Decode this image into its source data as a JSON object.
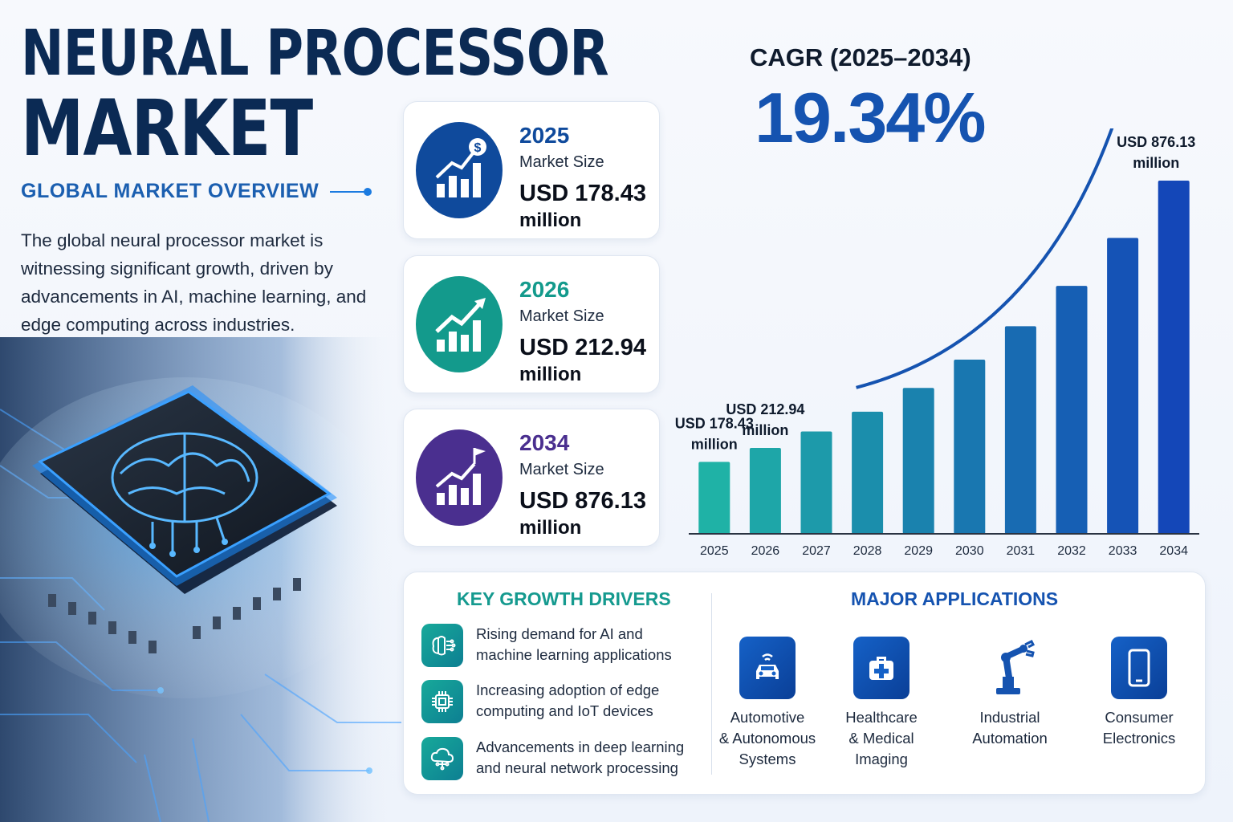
{
  "header": {
    "title_line1": "NEURAL PROCESSOR",
    "title_line2": "MARKET",
    "subtitle": "GLOBAL MARKET OVERVIEW",
    "intro": "The global neural processor market is witnessing significant growth, driven by advancements in AI, machine learning, and edge computing across industries."
  },
  "cards": [
    {
      "year": "2025",
      "label": "Market Size",
      "value": "USD 178.43",
      "unit": "million",
      "color": "#0f4a9c",
      "icon": "bar-growth-dollar-icon"
    },
    {
      "year": "2026",
      "label": "Market Size",
      "value": "USD 212.94",
      "unit": "million",
      "color": "#139a8c",
      "icon": "bar-growth-arrow-icon"
    },
    {
      "year": "2034",
      "label": "Market Size",
      "value": "USD 876.13",
      "unit": "million",
      "color": "#4a2f8f",
      "icon": "bar-growth-flag-icon"
    }
  ],
  "cagr": {
    "label": "CAGR (2025–2034)",
    "value": "19.34%"
  },
  "chart_data": {
    "type": "bar",
    "categories": [
      "2025",
      "2026",
      "2027",
      "2028",
      "2029",
      "2030",
      "2031",
      "2032",
      "2033",
      "2034"
    ],
    "values": [
      178.43,
      212.94,
      254,
      303,
      362,
      432,
      515,
      615,
      734,
      876.13
    ],
    "annotations": [
      {
        "category": "2025",
        "line1": "USD 178.43",
        "line2": "million"
      },
      {
        "category": "2026",
        "line1": "USD 212.94",
        "line2": "million"
      },
      {
        "category": "2034",
        "line1": "USD 876.13",
        "line2": "million"
      }
    ],
    "title": "",
    "xlabel": "",
    "ylabel": "",
    "grid": false,
    "colors": {
      "start": "#1fb2a6",
      "end": "#1447b8"
    }
  },
  "drivers": {
    "heading": "KEY GROWTH DRIVERS",
    "items": [
      {
        "text": "Rising demand for AI and machine learning applications",
        "icon": "brain-circuit-icon"
      },
      {
        "text": "Increasing adoption of edge computing and IoT devices",
        "icon": "chip-icon"
      },
      {
        "text": "Advancements in deep learning and neural network processing",
        "icon": "cloud-network-icon"
      }
    ]
  },
  "applications": {
    "heading": "MAJOR APPLICATIONS",
    "items": [
      {
        "label_lines": [
          "Automotive",
          "& Autonomous",
          "Systems"
        ],
        "icon": "connected-car-icon"
      },
      {
        "label_lines": [
          "Healthcare",
          "& Medical",
          "Imaging"
        ],
        "icon": "medical-kit-icon"
      },
      {
        "label_lines": [
          "Industrial",
          "Automation"
        ],
        "icon": "robotic-arm-icon"
      },
      {
        "label_lines": [
          "Consumer",
          "Electronics"
        ],
        "icon": "smartphone-icon"
      }
    ]
  }
}
